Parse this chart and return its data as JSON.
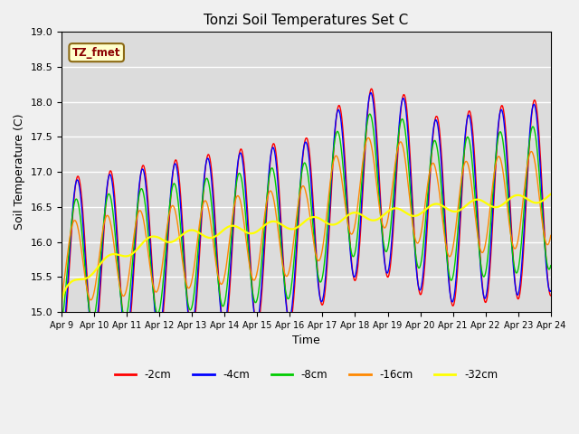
{
  "title": "Tonzi Soil Temperatures Set C",
  "xlabel": "Time",
  "ylabel": "Soil Temperature (C)",
  "ylim": [
    15.0,
    19.0
  ],
  "yticks": [
    15.0,
    15.5,
    16.0,
    16.5,
    17.0,
    17.5,
    18.0,
    18.5,
    19.0
  ],
  "x_labels": [
    "Apr 9",
    "Apr 10",
    "Apr 11",
    "Apr 12",
    "Apr 13",
    "Apr 14",
    "Apr 15",
    "Apr 16",
    "Apr 17",
    "Apr 18",
    "Apr 19",
    "Apr 20",
    "Apr 21",
    "Apr 22",
    "Apr 23",
    "Apr 24"
  ],
  "annotation_text": "TZ_fmet",
  "colors": {
    "-2cm": "#ff0000",
    "-4cm": "#0000ff",
    "-8cm": "#00cc00",
    "-16cm": "#ff8800",
    "-32cm": "#ffff00"
  },
  "fig_width": 6.4,
  "fig_height": 4.8,
  "dpi": 100,
  "n_points": 1500,
  "days": 15
}
